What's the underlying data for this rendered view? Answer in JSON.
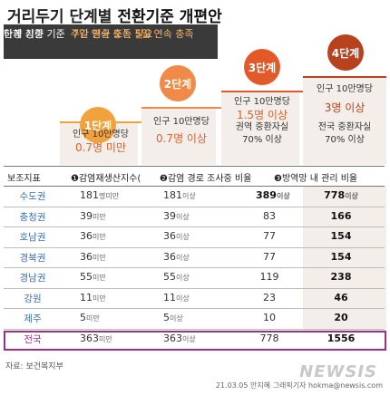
{
  "header": {
    "title_part1": "거리두기 단계별 ",
    "title_part2": "전환기준 개편안"
  },
  "criteria": {
    "up_label": "단계 상향 기준",
    "up_value": "주간 평균 또는 5일 연속 충족",
    "down_label": "하향 기준",
    "down_value": "7일 연속 충족 필요"
  },
  "steps": [
    {
      "label": "1단계",
      "line1": "인구 10만명당",
      "line2": "0.7명 미만",
      "color": "#f2a23d"
    },
    {
      "label": "2단계",
      "line1": "인구 10만명당",
      "line2": "0.7명 이상",
      "color": "#ef8a48"
    },
    {
      "label": "3단계",
      "line1": "인구 10만명당",
      "line2": "1.5명 이상",
      "line3": "권역 중환자실",
      "line4": "70% 이상",
      "color": "#e25a2a"
    },
    {
      "label": "4단계",
      "line1": "인구 10만명당",
      "line2": "3명 이상",
      "line3": "전국 중환자실",
      "line4": "70% 이상",
      "color": "#b8421e"
    }
  ],
  "table": {
    "header": {
      "col0": "보조지표",
      "col1": "❶감염재생산지수(",
      "col2": "❷감염 경로 조사중 비율",
      "col3": "❸방역망 내 관리 비율"
    },
    "rows": [
      {
        "region": "수도권",
        "c1": "181",
        "c1s": "명미만",
        "c2": "181",
        "c2s": "이상",
        "c3": "389",
        "c3s": "이상",
        "c4": "778",
        "c4s": "이상"
      },
      {
        "region": "충청권",
        "c1": "39",
        "c1s": "미만",
        "c2": "39",
        "c2s": "이상",
        "c3": "83",
        "c3s": "",
        "c4": "166",
        "c4s": ""
      },
      {
        "region": "호남권",
        "c1": "36",
        "c1s": "미만",
        "c2": "36",
        "c2s": "이상",
        "c3": "77",
        "c3s": "",
        "c4": "154",
        "c4s": ""
      },
      {
        "region": "경북권",
        "c1": "36",
        "c1s": "미만",
        "c2": "36",
        "c2s": "이상",
        "c3": "77",
        "c3s": "",
        "c4": "154",
        "c4s": ""
      },
      {
        "region": "경남권",
        "c1": "55",
        "c1s": "미만",
        "c2": "55",
        "c2s": "이상",
        "c3": "119",
        "c3s": "",
        "c4": "238",
        "c4s": ""
      },
      {
        "region": "강원",
        "c1": "11",
        "c1s": "미만",
        "c2": "11",
        "c2s": "이상",
        "c3": "23",
        "c3s": "",
        "c4": "46",
        "c4s": ""
      },
      {
        "region": "제주",
        "c1": "5",
        "c1s": "미만",
        "c2": "5",
        "c2s": "이상",
        "c3": "10",
        "c3s": "",
        "c4": "20",
        "c4s": ""
      },
      {
        "region": "전국",
        "c1": "363",
        "c1s": "미만",
        "c2": "363",
        "c2s": "이상",
        "c3": "778",
        "c3s": "",
        "c4": "1556",
        "c4s": ""
      }
    ]
  },
  "footer": {
    "source": "자료: 보건복지부",
    "credit": "21.03.05 안지혜 그래픽기자 hokma@newsis.com",
    "watermark": "NEWSIS"
  }
}
